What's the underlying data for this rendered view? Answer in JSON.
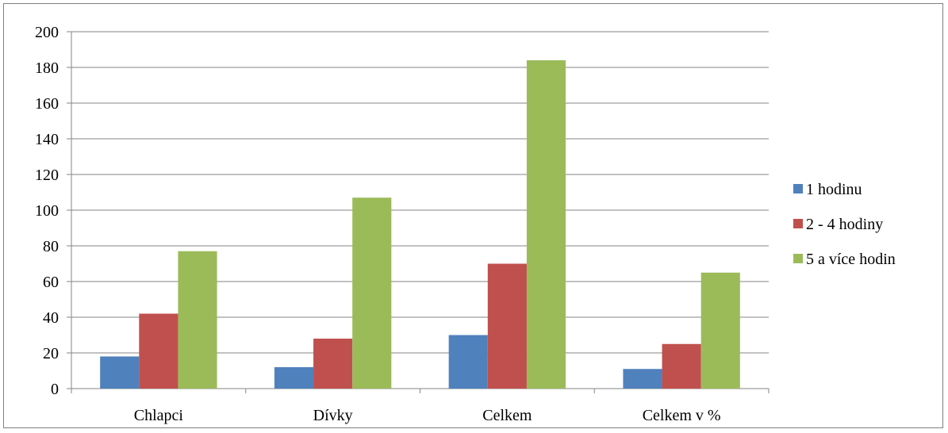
{
  "chart_data": {
    "type": "bar",
    "title": "",
    "xlabel": "",
    "ylabel": "",
    "categories": [
      "Chlapci",
      "Dívky",
      "Celkem",
      "Celkem v %"
    ],
    "series": [
      {
        "name": "1 hodinu",
        "color": "#4F81BD",
        "values": [
          18,
          12,
          30,
          11
        ]
      },
      {
        "name": "2 - 4 hodiny",
        "color": "#C0504D",
        "values": [
          42,
          28,
          70,
          25
        ]
      },
      {
        "name": "5 a více hodin",
        "color": "#9BBB59",
        "values": [
          77,
          107,
          184,
          65
        ]
      }
    ],
    "ylim": [
      0,
      200
    ],
    "yticks": [
      "0",
      "20",
      "40",
      "60",
      "80",
      "100",
      "120",
      "140",
      "160",
      "180",
      "200"
    ],
    "grid": true,
    "legend_position": "right"
  }
}
